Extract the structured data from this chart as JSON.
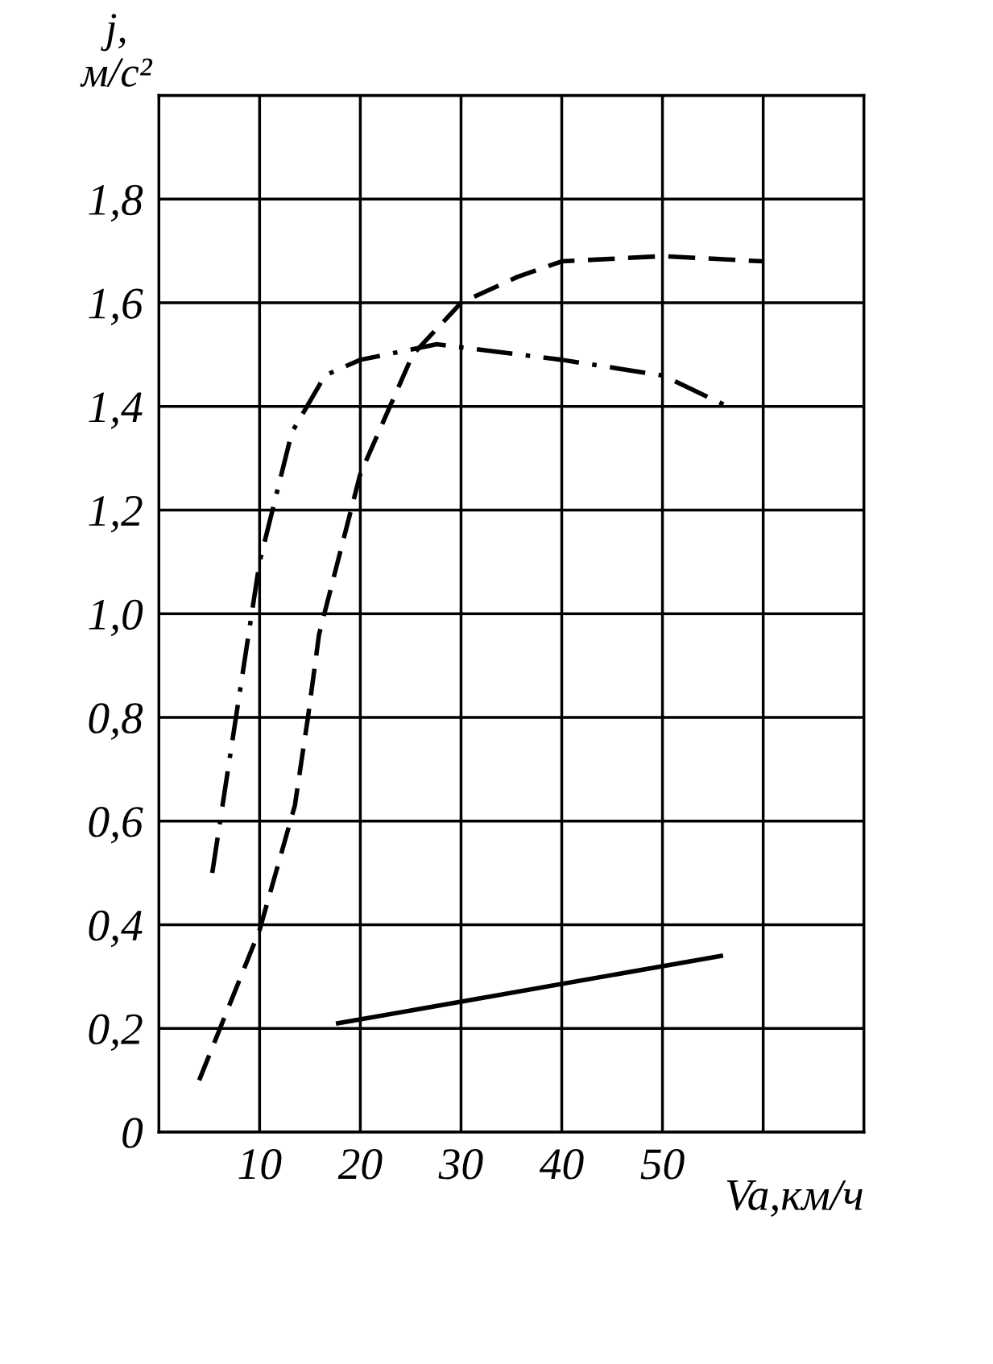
{
  "chart_data": {
    "type": "line",
    "xlabel": "Va,км/ч",
    "ylabel": "j,\nм/с²",
    "xlim": [
      0,
      70
    ],
    "xticks": [
      {
        "value": 0,
        "label": null
      },
      10,
      20,
      30,
      40,
      50,
      {
        "value": 60,
        "label": null
      },
      {
        "value": 70,
        "label": null
      }
    ],
    "ylim": [
      0,
      2.0
    ],
    "yticks": [
      {
        "value": 0,
        "label": "0"
      },
      {
        "value": 0.2,
        "label": "0,2"
      },
      {
        "value": 0.4,
        "label": "0,4"
      },
      {
        "value": 0.6,
        "label": "0,6"
      },
      {
        "value": 0.8,
        "label": "0,8"
      },
      {
        "value": 1.0,
        "label": "1,0"
      },
      {
        "value": 1.2,
        "label": "1,2"
      },
      {
        "value": 1.4,
        "label": "1,4"
      },
      {
        "value": 1.6,
        "label": "1,6"
      },
      {
        "value": 1.8,
        "label": "1,8"
      },
      {
        "value": 2.0,
        "label": null
      }
    ],
    "grid": true,
    "legend": false,
    "marker": "none",
    "series": [
      {
        "color": "#000000",
        "line_style": "dashdot",
        "x": [
          5.3,
          10,
          13.2,
          16.5,
          20,
          27.6,
          40,
          50,
          56.5
        ],
        "values": [
          0.5,
          1.1,
          1.35,
          1.46,
          1.49,
          1.52,
          1.49,
          1.46,
          1.4
        ]
      },
      {
        "color": "#000000",
        "line_style": "dashed",
        "x": [
          4,
          10,
          13.5,
          14.8,
          15.9,
          20,
          25.2,
          30,
          35.6,
          40,
          50,
          60
        ],
        "values": [
          0.1,
          0.39,
          0.63,
          0.8,
          0.96,
          1.27,
          1.5,
          1.6,
          1.65,
          1.68,
          1.69,
          1.68
        ]
      },
      {
        "color": "#000000",
        "line_style": "solid",
        "x": [
          17.8,
          55.8
        ],
        "values": [
          0.21,
          0.34
        ]
      }
    ]
  }
}
